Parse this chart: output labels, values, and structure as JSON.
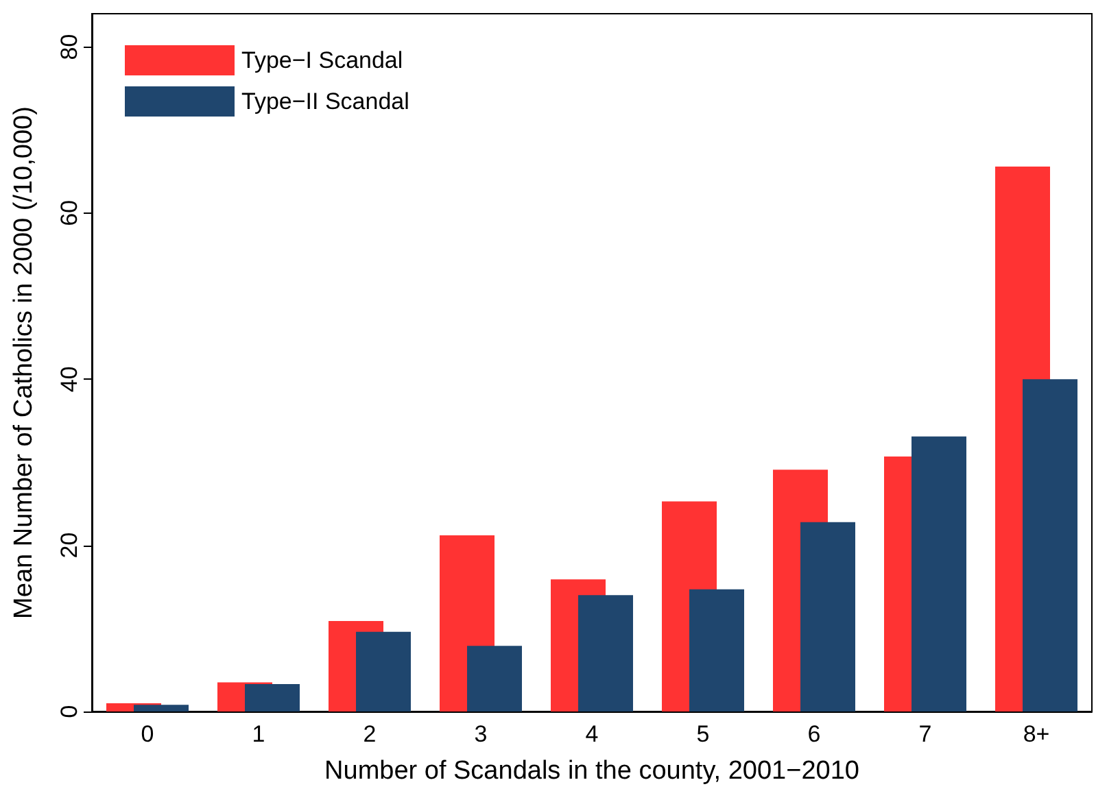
{
  "chart_data": {
    "type": "bar",
    "xlabel": "Number of Scandals in the county, 2001−2010",
    "ylabel": "Mean Number of Catholics in 2000 (/10,000)",
    "categories": [
      "0",
      "1",
      "2",
      "3",
      "4",
      "5",
      "6",
      "7",
      "8+"
    ],
    "series": [
      {
        "name": "Type−I Scandal",
        "color": "#ff3333",
        "values": [
          1.0,
          3.5,
          10.9,
          21.2,
          15.9,
          25.3,
          29.1,
          30.7,
          65.6
        ]
      },
      {
        "name": "Type−II Scandal",
        "color": "#1f466e",
        "values": [
          0.8,
          3.3,
          9.6,
          7.9,
          14.0,
          14.7,
          22.8,
          33.1,
          40.0
        ]
      }
    ],
    "ylim": [
      0,
      84
    ],
    "yticks": [
      0,
      20,
      40,
      60,
      80
    ],
    "grid": false,
    "legend": "top left"
  }
}
